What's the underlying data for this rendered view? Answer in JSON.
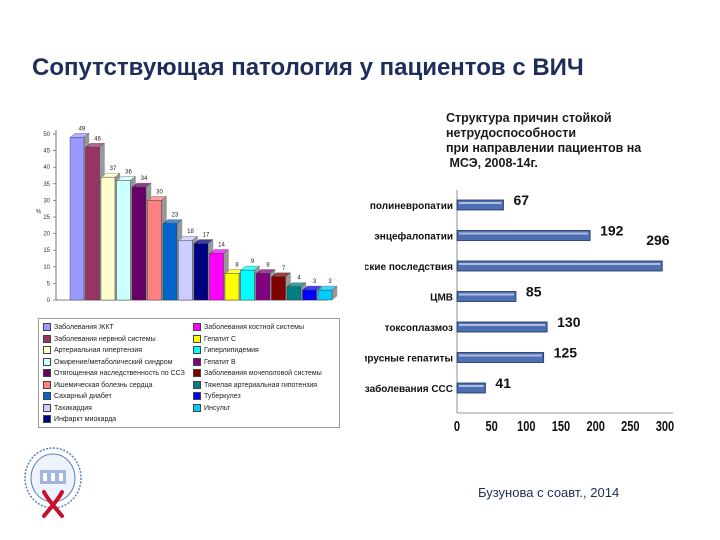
{
  "title": "Сопутствующая патология у пациентов с ВИЧ",
  "author": "Бузунова с соавт., 2014",
  "chart_data": [
    {
      "type": "bar",
      "ylabel": "%",
      "ylim": [
        0,
        50
      ],
      "yticks": [
        0,
        5,
        10,
        15,
        20,
        25,
        30,
        35,
        40,
        45,
        50
      ],
      "values": [
        49,
        46,
        37,
        36,
        34,
        30,
        23,
        18,
        17,
        14,
        8,
        9,
        8,
        7,
        4,
        3,
        3
      ],
      "data_labels": [
        "49",
        "46",
        "37",
        "36",
        "34",
        "30",
        "23",
        "18",
        "17",
        "14",
        "8",
        "9",
        "8",
        "7",
        "4",
        "3",
        "3"
      ],
      "colors": [
        "#9999ff",
        "#993366",
        "#ffffcc",
        "#ccffff",
        "#660066",
        "#ff8080",
        "#0066cc",
        "#ccccff",
        "#000080",
        "#ff00ff",
        "#ffff00",
        "#00ffff",
        "#800080",
        "#800000",
        "#008080",
        "#0000ff",
        "#00ccff"
      ],
      "legend": [
        "Заболевания ЖКТ",
        "Заболевания нервной системы",
        "Артериальная гипертензия",
        "Ожирение/метаболический синдром",
        "Отягощенная наследственность по ССЗ",
        "Ишемическая болезнь сердца",
        "Сахарный диабет",
        "Тахикардия",
        "Инфаркт миокарда",
        "Заболевания костной системы",
        "Гепатит С",
        "Гиперлипидемия",
        "Гепатит В",
        "Заболевания мочеполовой системы",
        "Тяжелая артериальная гипотензия",
        "Туберкулез",
        "Инсульт"
      ]
    },
    {
      "type": "bar",
      "orientation": "horizontal",
      "caption": [
        "Структура причин стойкой",
        "нетрудоспособности",
        "при направлении пациентов на",
        " МСЭ, 2008-14г."
      ],
      "categories": [
        "полиневропатии",
        "энцефалопатии",
        "неврологические последствия",
        "ЦМВ",
        "токсоплазмоз",
        "вирусные гепатиты",
        "заболевания ССС"
      ],
      "values": [
        67,
        192,
        296,
        85,
        130,
        125,
        41
      ],
      "xlim": [
        0,
        300
      ],
      "xticks": [
        "0",
        "50",
        "100",
        "150",
        "200",
        "250",
        "300"
      ],
      "bar_color": "#4f6fb5"
    }
  ]
}
